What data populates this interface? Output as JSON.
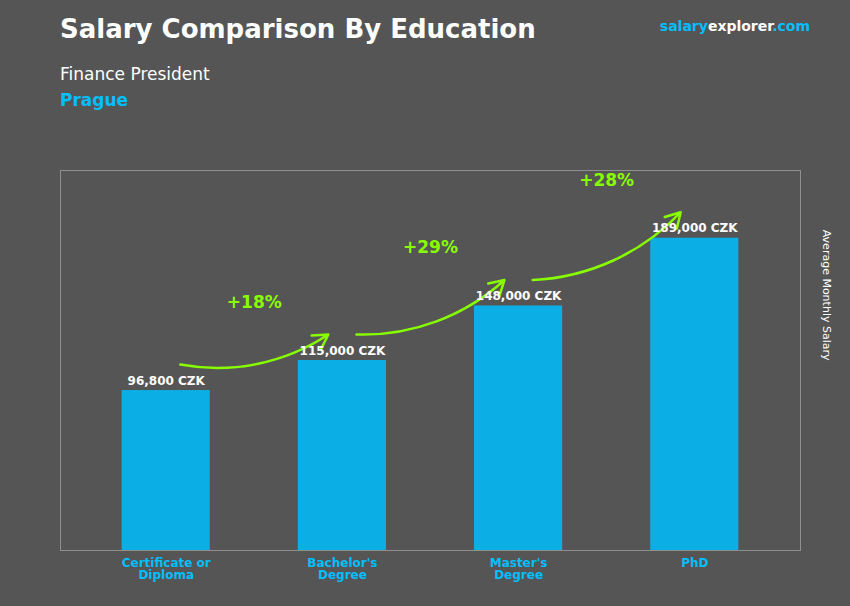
{
  "chart_data": {
    "type": "bar",
    "title": "Salary Comparison By Education",
    "subtitle": [
      "Finance President",
      "Prague"
    ],
    "watermark": [
      "salary",
      "explorer",
      ".com"
    ],
    "ylabel": "Average Monthly Salary",
    "categories": [
      "Certificate or\nDiploma",
      "Bachelor's\nDegree",
      "Master's\nDegree",
      "PhD"
    ],
    "values": [
      96800,
      115000,
      148000,
      189000
    ],
    "value_labels": [
      "96,800 CZK",
      "115,000 CZK",
      "148,000 CZK",
      "189,000 CZK"
    ],
    "data_labels": true,
    "color": "#00BFFF",
    "ylim": [
      0,
      230000
    ],
    "yticks": [],
    "tick_labels": "x",
    "grid": false,
    "annotations": [
      {
        "text": "+18%",
        "from": "Certificate or\nDiploma",
        "to": "Bachelor's\nDegree",
        "color": "#88FF00"
      },
      {
        "text": "+29%",
        "from": "Bachelor's\nDegree",
        "to": "Master's\nDegree",
        "color": "#88FF00"
      },
      {
        "text": "+28%",
        "from": "Master's\nDegree",
        "to": "PhD",
        "color": "#88FF00"
      }
    ]
  }
}
